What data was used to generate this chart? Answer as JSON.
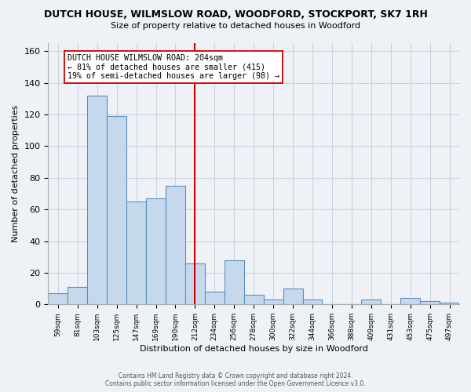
{
  "title": "DUTCH HOUSE, WILMSLOW ROAD, WOODFORD, STOCKPORT, SK7 1RH",
  "subtitle": "Size of property relative to detached houses in Woodford",
  "xlabel": "Distribution of detached houses by size in Woodford",
  "ylabel": "Number of detached properties",
  "bin_labels": [
    "59sqm",
    "81sqm",
    "103sqm",
    "125sqm",
    "147sqm",
    "169sqm",
    "190sqm",
    "212sqm",
    "234sqm",
    "256sqm",
    "278sqm",
    "300sqm",
    "322sqm",
    "344sqm",
    "366sqm",
    "388sqm",
    "409sqm",
    "431sqm",
    "453sqm",
    "475sqm",
    "497sqm"
  ],
  "bar_heights": [
    7,
    11,
    132,
    119,
    65,
    67,
    75,
    26,
    8,
    28,
    6,
    3,
    10,
    3,
    0,
    0,
    3,
    0,
    4,
    2,
    1
  ],
  "bar_color": "#c6d9ec",
  "bar_edge_color": "#5a8fc0",
  "vline_color": "#cc0000",
  "annotation_title": "DUTCH HOUSE WILMSLOW ROAD: 204sqm",
  "annotation_line1": "← 81% of detached houses are smaller (415)",
  "annotation_line2": "19% of semi-detached houses are larger (98) →",
  "annotation_box_color": "#ffffff",
  "annotation_box_edgecolor": "#cc0000",
  "ylim": [
    0,
    165
  ],
  "footer1": "Contains HM Land Registry data © Crown copyright and database right 2024.",
  "footer2": "Contains public sector information licensed under the Open Government Licence v3.0.",
  "bg_color": "#eef2f7",
  "grid_color": "#c8d4e0",
  "plot_bg_color": "#eef2f7"
}
